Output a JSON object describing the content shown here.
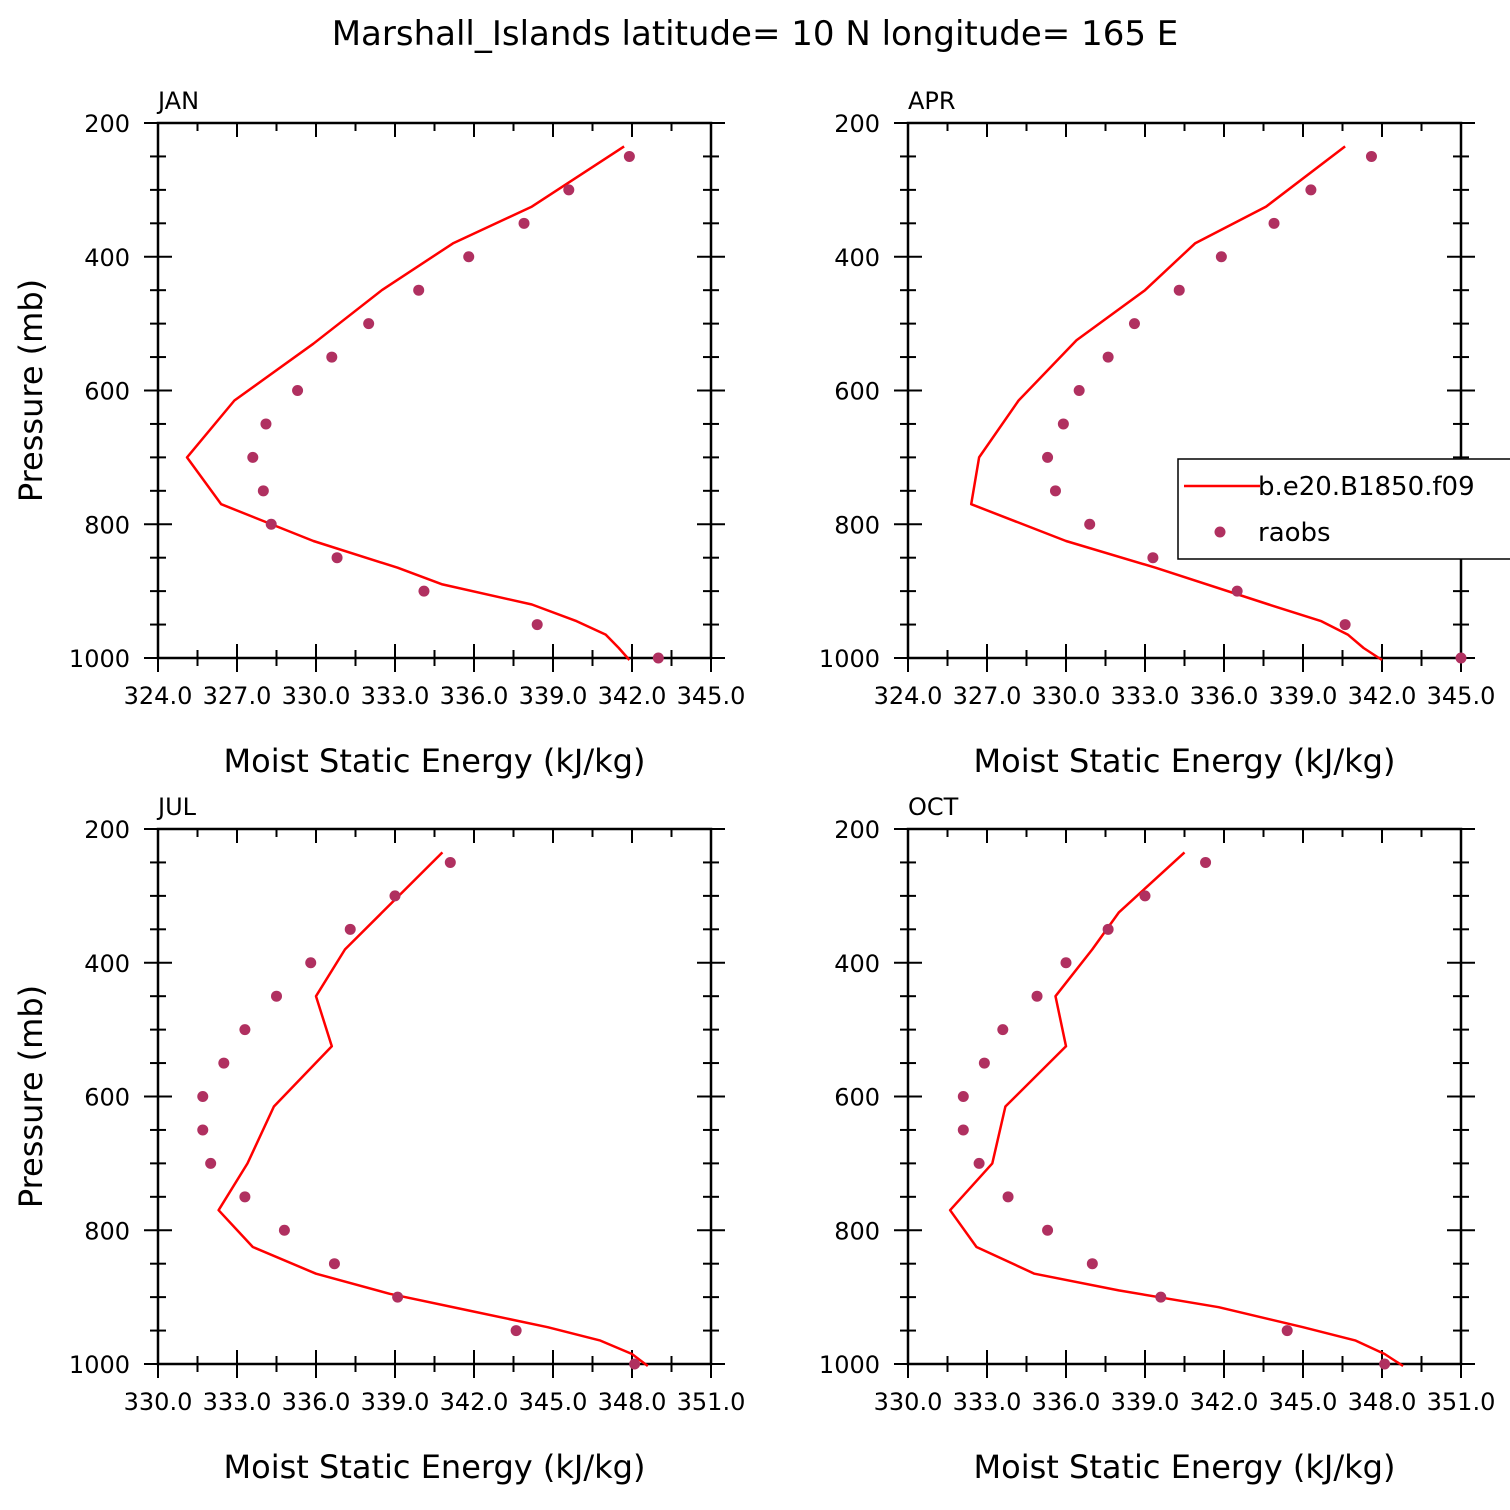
{
  "title": "Marshall_Islands  latitude= 10 N longitude= 165 E",
  "colors": {
    "model": "#ff0000",
    "obs": "#b03060",
    "axis": "#000000"
  },
  "legend": {
    "model_label": "b.e20.B1850.f09",
    "obs_label": "raobs",
    "placement": "right of APR panel"
  },
  "chart_data": [
    {
      "type": "line",
      "title": "JAN",
      "xlabel": "Moist Static Energy (kJ/kg)",
      "ylabel": "Pressure (mb)",
      "xlim": [
        324,
        345
      ],
      "ylim": [
        200,
        1000
      ],
      "y_inverted": true,
      "x_ticks": [
        324,
        327,
        330,
        333,
        336,
        339,
        342,
        345
      ],
      "x_tick_labels": [
        "324.0",
        "327.0",
        "330.0",
        "333.0",
        "336.0",
        "339.0",
        "342.0",
        "345.0"
      ],
      "y_ticks": [
        200,
        400,
        600,
        800,
        1000
      ],
      "series": [
        {
          "name": "b.e20.B1850.f09",
          "kind": "line",
          "x": [
            341.7,
            338.2,
            335.2,
            332.5,
            329.9,
            326.9,
            325.1,
            326.4,
            329.9,
            333.1,
            334.8,
            338.2,
            339.9,
            341.0,
            341.5,
            341.9
          ],
          "y": [
            235,
            325,
            380,
            450,
            530,
            615,
            700,
            770,
            825,
            865,
            890,
            920,
            945,
            965,
            985,
            1003
          ]
        },
        {
          "name": "raobs",
          "kind": "scatter",
          "x": [
            341.9,
            339.6,
            337.9,
            335.8,
            333.9,
            332.0,
            330.6,
            329.3,
            328.1,
            327.6,
            328.0,
            328.3,
            330.8,
            334.1,
            338.4,
            343.0
          ],
          "y": [
            250,
            300,
            350,
            400,
            450,
            500,
            550,
            600,
            650,
            700,
            750,
            800,
            850,
            900,
            950,
            1000
          ]
        }
      ]
    },
    {
      "type": "line",
      "title": "APR",
      "xlabel": "Moist Static Energy (kJ/kg)",
      "ylabel": "",
      "xlim": [
        324,
        345
      ],
      "ylim": [
        200,
        1000
      ],
      "y_inverted": true,
      "x_ticks": [
        324,
        327,
        330,
        333,
        336,
        339,
        342,
        345
      ],
      "x_tick_labels": [
        "324.0",
        "327.0",
        "330.0",
        "333.0",
        "336.0",
        "339.0",
        "342.0",
        "345.0"
      ],
      "y_ticks": [
        200,
        400,
        600,
        800,
        1000
      ],
      "series": [
        {
          "name": "b.e20.B1850.f09",
          "kind": "line",
          "x": [
            340.6,
            337.6,
            334.9,
            333.0,
            330.4,
            328.2,
            326.7,
            326.4,
            330.0,
            333.4,
            337.7,
            339.7,
            340.7,
            341.3,
            342.0
          ],
          "y": [
            235,
            325,
            380,
            450,
            525,
            615,
            700,
            770,
            825,
            865,
            920,
            945,
            965,
            985,
            1003
          ]
        },
        {
          "name": "raobs",
          "kind": "scatter",
          "x": [
            341.6,
            339.3,
            337.9,
            335.9,
            334.3,
            332.6,
            331.6,
            330.5,
            329.9,
            329.3,
            329.6,
            330.9,
            333.3,
            336.5,
            340.6,
            345.0
          ],
          "y": [
            250,
            300,
            350,
            400,
            450,
            500,
            550,
            600,
            650,
            700,
            750,
            800,
            850,
            900,
            950,
            1000
          ]
        }
      ]
    },
    {
      "type": "line",
      "title": "JUL",
      "xlabel": "Moist Static Energy (kJ/kg)",
      "ylabel": "Pressure (mb)",
      "xlim": [
        330,
        351
      ],
      "ylim": [
        200,
        1000
      ],
      "y_inverted": true,
      "x_ticks": [
        330,
        333,
        336,
        339,
        342,
        345,
        348,
        351
      ],
      "x_tick_labels": [
        "330.0",
        "333.0",
        "336.0",
        "339.0",
        "342.0",
        "345.0",
        "348.0",
        "351.0"
      ],
      "y_ticks": [
        200,
        400,
        600,
        800,
        1000
      ],
      "series": [
        {
          "name": "b.e20.B1850.f09",
          "kind": "line",
          "x": [
            340.8,
            337.1,
            336.0,
            336.6,
            334.4,
            333.4,
            332.3,
            333.6,
            336.0,
            338.8,
            341.8,
            344.8,
            346.8,
            348.0,
            348.6
          ],
          "y": [
            235,
            380,
            450,
            525,
            615,
            700,
            770,
            825,
            865,
            895,
            920,
            945,
            965,
            985,
            1003
          ]
        },
        {
          "name": "raobs",
          "kind": "scatter",
          "x": [
            341.1,
            339.0,
            337.3,
            335.8,
            334.5,
            333.3,
            332.5,
            331.7,
            331.7,
            332.0,
            333.3,
            334.8,
            336.7,
            339.1,
            343.6,
            348.1
          ],
          "y": [
            250,
            300,
            350,
            400,
            450,
            500,
            550,
            600,
            650,
            700,
            750,
            800,
            850,
            900,
            950,
            1000
          ]
        }
      ]
    },
    {
      "type": "line",
      "title": "OCT",
      "xlabel": "Moist Static Energy (kJ/kg)",
      "ylabel": "",
      "xlim": [
        330,
        351
      ],
      "ylim": [
        200,
        1000
      ],
      "y_inverted": true,
      "x_ticks": [
        330,
        333,
        336,
        339,
        342,
        345,
        348,
        351
      ],
      "x_tick_labels": [
        "330.0",
        "333.0",
        "336.0",
        "339.0",
        "342.0",
        "345.0",
        "348.0",
        "351.0"
      ],
      "y_ticks": [
        200,
        400,
        600,
        800,
        1000
      ],
      "series": [
        {
          "name": "b.e20.B1850.f09",
          "kind": "line",
          "x": [
            340.5,
            338.0,
            337.0,
            335.6,
            336.0,
            333.7,
            333.2,
            331.6,
            332.6,
            334.8,
            338.0,
            341.8,
            345.0,
            347.0,
            348.1,
            348.8
          ],
          "y": [
            235,
            325,
            380,
            450,
            525,
            615,
            700,
            770,
            825,
            865,
            890,
            915,
            945,
            965,
            985,
            1003
          ]
        },
        {
          "name": "raobs",
          "kind": "scatter",
          "x": [
            341.3,
            339.0,
            337.6,
            336.0,
            334.9,
            333.6,
            332.9,
            332.1,
            332.1,
            332.7,
            333.8,
            335.3,
            337.0,
            339.6,
            344.4,
            348.1
          ],
          "y": [
            250,
            300,
            350,
            400,
            450,
            500,
            550,
            600,
            650,
            700,
            750,
            800,
            850,
            900,
            950,
            1000
          ]
        }
      ]
    }
  ]
}
